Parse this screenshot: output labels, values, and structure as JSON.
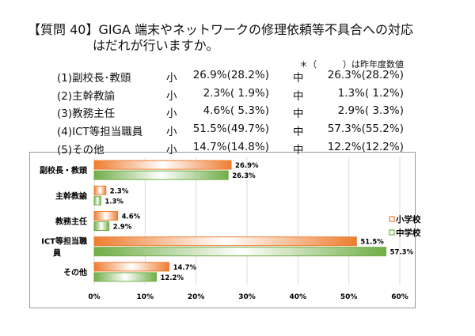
{
  "title_line1": "【質問 40】GIGA 端末やネットワークの修理依頼等不具合への対応",
  "title_line2": "はだれが行いますか。",
  "note": "＊（　　　）は昨年度数値",
  "rows": [
    {
      "label": "(1)副校長･教頭",
      "s_label": "小",
      "s": "26.9%(28.2%)",
      "m_label": "中",
      "m": "26.3%(28.2%)"
    },
    {
      "label": "(2)主幹教諭",
      "s_label": "小",
      "s": "2.3%( 1.9%)",
      "m_label": "中",
      "m": "1.3%( 1.2%)"
    },
    {
      "label": "(3)教務主任",
      "s_label": "小",
      "s": "4.6%( 5.3%)",
      "m_label": "中",
      "m": "2.9%( 3.3%)"
    },
    {
      "label": "(4)ICT等担当職員",
      "s_label": "小",
      "s": "51.5%(49.7%)",
      "m_label": "中",
      "m": "57.3%(55.2%)"
    },
    {
      "label": "(5)その他",
      "s_label": "小",
      "s": "14.7%(14.8%)",
      "m_label": "中",
      "m": "12.2%(12.2%)"
    }
  ],
  "chart_data": {
    "type": "bar",
    "orientation": "horizontal",
    "categories": [
      "副校長・教頭",
      "主幹教諭",
      "教務主任",
      "ICT等担当職員",
      "その他"
    ],
    "series": [
      {
        "name": "小学校",
        "values": [
          26.9,
          2.3,
          4.6,
          51.5,
          14.7
        ],
        "labels": [
          "26.9%",
          "2.3%",
          "4.6%",
          "51.5%",
          "14.7%"
        ],
        "color": "#ED7D31"
      },
      {
        "name": "中学校",
        "values": [
          26.3,
          1.3,
          2.9,
          57.3,
          12.2
        ],
        "labels": [
          "26.3%",
          "1.3%",
          "2.9%",
          "57.3%",
          "12.2%"
        ],
        "color": "#70AD47"
      }
    ],
    "xlim": [
      0,
      60
    ],
    "ticks": [
      "0%",
      "10%",
      "20%",
      "30%",
      "40%",
      "50%",
      "60%"
    ],
    "grid": true,
    "legend": "right"
  }
}
